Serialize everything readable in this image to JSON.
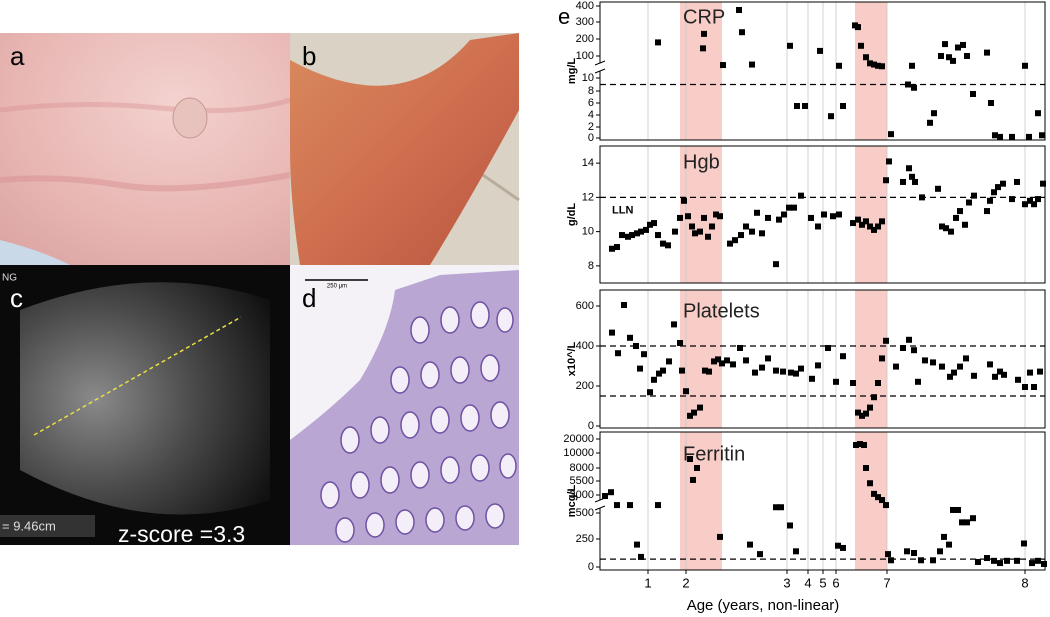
{
  "figure": {
    "panel_labels": [
      "a",
      "b",
      "c",
      "d",
      "e"
    ],
    "ultrasound_tag": "NG",
    "measurement": "= 9.46cm",
    "zscore": "z-score =3.3",
    "scale_bar": "250 μm"
  },
  "chart_data": [
    {
      "type": "scatter",
      "title": "CRP",
      "ylabel": "mg/L",
      "y_scale": "broken",
      "color": "#000000",
      "xlim": [
        0,
        445
      ],
      "ylim": [
        0,
        400
      ],
      "yticks": [
        0,
        2,
        4,
        6,
        8,
        10,
        100,
        200,
        300,
        400
      ],
      "reference_lines": [
        9
      ],
      "shaded": [
        [
          80,
          122
        ],
        [
          255,
          287
        ]
      ],
      "x": [
        58,
        103,
        104,
        123,
        139,
        142,
        152,
        190,
        197,
        205,
        220,
        231,
        239,
        243,
        255,
        258,
        261,
        266,
        270,
        274,
        278,
        282,
        291,
        308,
        312,
        314,
        330,
        334,
        341,
        345,
        349,
        353,
        358,
        363,
        367,
        373,
        387,
        391,
        395,
        400,
        412,
        425,
        429,
        438,
        442
      ],
      "values": [
        180,
        145,
        230,
        63,
        375,
        240,
        65,
        160,
        5.5,
        5.5,
        130,
        3.8,
        60,
        5.5,
        280,
        270,
        160,
        95,
        70,
        65,
        60,
        58,
        0.7,
        9,
        60,
        8.5,
        2.7,
        4.3,
        100,
        170,
        95,
        80,
        150,
        165,
        100,
        7.5,
        120,
        6,
        0.5,
        0.2,
        0.2,
        60,
        0.2,
        4.3,
        0.5
      ]
    },
    {
      "type": "scatter",
      "title": "Hgb",
      "ylabel": "g/dL",
      "y_scale": "linear",
      "color": "#000000",
      "xlim": [
        0,
        445
      ],
      "ylim": [
        7,
        15
      ],
      "yticks": [
        8,
        10,
        12,
        14
      ],
      "reference_lines": [
        12
      ],
      "reference_label": "LLN",
      "shaded": [
        [
          80,
          122
        ],
        [
          255,
          287
        ]
      ],
      "x": [
        12,
        17,
        22,
        28,
        32,
        37,
        41,
        46,
        50,
        54,
        58,
        63,
        68,
        75,
        80,
        84,
        88,
        92,
        95,
        100,
        104,
        108,
        112,
        116,
        120,
        130,
        135,
        141,
        146,
        152,
        157,
        162,
        168,
        176,
        179,
        184,
        189,
        194,
        201,
        211,
        218,
        224,
        233,
        239,
        253,
        258,
        262,
        266,
        270,
        274,
        278,
        282,
        286,
        289,
        303,
        309,
        312,
        315,
        322,
        338,
        342,
        346,
        351,
        356,
        360,
        365,
        369,
        374,
        387,
        390,
        394,
        398,
        403,
        412,
        417,
        425,
        430,
        434,
        438,
        443
      ],
      "values": [
        9.0,
        9.1,
        9.8,
        9.7,
        9.8,
        9.9,
        10.0,
        10.1,
        10.4,
        10.5,
        9.8,
        9.3,
        9.2,
        10.0,
        10.8,
        11.8,
        10.9,
        10.3,
        9.9,
        10.0,
        10.8,
        9.7,
        10.3,
        11.0,
        10.9,
        9.3,
        9.5,
        9.8,
        10.3,
        10.0,
        11.1,
        9.9,
        10.8,
        8.1,
        10.7,
        11.0,
        11.4,
        11.4,
        12.1,
        10.8,
        10.3,
        11.0,
        10.9,
        11.0,
        10.5,
        10.7,
        10.4,
        10.6,
        10.3,
        10.1,
        10.3,
        10.6,
        13.0,
        14.1,
        12.9,
        13.7,
        13.2,
        12.9,
        12.0,
        12.5,
        10.3,
        10.2,
        10.0,
        10.8,
        11.2,
        10.4,
        11.7,
        12.1,
        11.2,
        11.8,
        12.3,
        12.6,
        12.8,
        11.9,
        12.9,
        11.6,
        11.8,
        11.6,
        11.9,
        12.8
      ]
    },
    {
      "type": "scatter",
      "title": "Platelets",
      "ylabel": "x10^/L",
      "y_scale": "linear",
      "color": "#000000",
      "xlim": [
        0,
        445
      ],
      "ylim": [
        0,
        680
      ],
      "yticks": [
        0,
        200,
        400,
        600
      ],
      "reference_lines": [
        150,
        400
      ],
      "shaded": [
        [
          80,
          122
        ],
        [
          255,
          287
        ]
      ],
      "x": [
        12,
        18,
        24,
        30,
        36,
        40,
        44,
        50,
        54,
        59,
        63,
        69,
        74,
        80,
        82,
        86,
        90,
        94,
        100,
        105,
        109,
        114,
        118,
        122,
        127,
        133,
        140,
        146,
        155,
        162,
        168,
        176,
        183,
        191,
        196,
        201,
        212,
        218,
        228,
        236,
        243,
        253,
        258,
        262,
        266,
        270,
        274,
        278,
        282,
        286,
        296,
        303,
        309,
        314,
        318,
        325,
        333,
        342,
        350,
        354,
        360,
        366,
        374,
        390,
        395,
        400,
        404,
        418,
        425,
        430,
        434,
        440
      ],
      "values": [
        467,
        364,
        605,
        441,
        400,
        287,
        359,
        169,
        231,
        262,
        277,
        323,
        508,
        415,
        277,
        174,
        51,
        67,
        92,
        277,
        272,
        323,
        333,
        313,
        328,
        308,
        390,
        328,
        267,
        292,
        338,
        277,
        272,
        267,
        262,
        287,
        236,
        303,
        390,
        221,
        349,
        215,
        67,
        51,
        62,
        92,
        144,
        215,
        338,
        426,
        297,
        390,
        431,
        379,
        221,
        328,
        318,
        297,
        246,
        267,
        297,
        338,
        251,
        308,
        246,
        272,
        256,
        231,
        195,
        267,
        195,
        272
      ]
    },
    {
      "type": "scatter",
      "title": "Ferritin",
      "ylabel": "mcg/L",
      "y_scale": "broken",
      "color": "#000000",
      "xlabel": "Age (years, non-linear)",
      "xlim": [
        0,
        445
      ],
      "ylim": [
        0,
        20000
      ],
      "yticks": [
        0,
        250,
        500,
        3000,
        5500,
        8000,
        10000,
        20000
      ],
      "xticks": [
        {
          "value": 48,
          "label": "1"
        },
        {
          "value": 86,
          "label": "2"
        },
        {
          "value": 187,
          "label": "3"
        },
        {
          "value": 208,
          "label": "4"
        },
        {
          "value": 223,
          "label": "5"
        },
        {
          "value": 236,
          "label": "6"
        },
        {
          "value": 287,
          "label": "7"
        },
        {
          "value": 425,
          "label": "8"
        }
      ],
      "reference_lines": [
        70
      ],
      "shaded": [
        [
          80,
          122
        ],
        [
          255,
          287
        ]
      ],
      "x": [
        5,
        11,
        17,
        30,
        37,
        41,
        58,
        90,
        93,
        97,
        120,
        150,
        160,
        176,
        181,
        190,
        196,
        238,
        243,
        256,
        260,
        264,
        266,
        270,
        274,
        278,
        282,
        286,
        288,
        291,
        307,
        314,
        321,
        333,
        340,
        344,
        349,
        353,
        358,
        362,
        367,
        373,
        378,
        387,
        394,
        400,
        407,
        417,
        424,
        432,
        438,
        444
      ],
      "values": [
        2860,
        3500,
        1600,
        1600,
        200,
        90,
        1600,
        9200,
        5700,
        8000,
        270,
        200,
        115,
        1300,
        1300,
        380,
        140,
        190,
        170,
        15700,
        16400,
        15700,
        8000,
        5100,
        3200,
        2700,
        2300,
        1600,
        115,
        60,
        140,
        125,
        60,
        60,
        140,
        270,
        200,
        920,
        920,
        410,
        410,
        450,
        45,
        80,
        55,
        35,
        55,
        55,
        210,
        35,
        55,
        27
      ]
    }
  ]
}
